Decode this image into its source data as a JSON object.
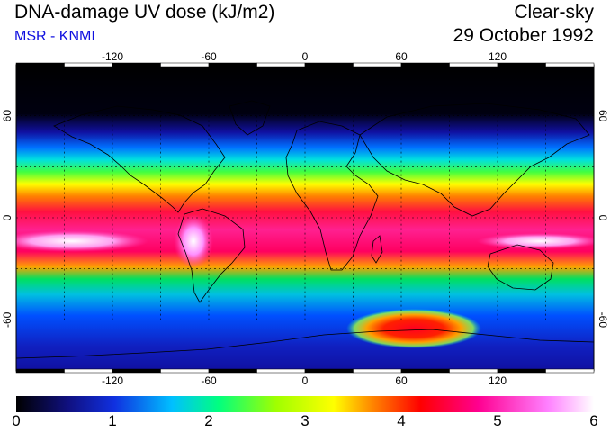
{
  "header": {
    "title": "DNA-damage UV dose (kJ/m2)",
    "subtitle": "MSR - KNMI",
    "condition": "Clear-sky",
    "date": "29 October 1992"
  },
  "map": {
    "lon_ticks": [
      "-120",
      "-60",
      "0",
      "60",
      "120"
    ],
    "lat_ticks": [
      "60",
      "0",
      "-60"
    ],
    "lat_ticks_right": [
      "60",
      "0",
      "-60"
    ]
  },
  "colorbar": {
    "labels": [
      "0",
      "1",
      "2",
      "3",
      "4",
      "5",
      "6"
    ],
    "min": 0,
    "max": 6,
    "unit": "kJ/m2",
    "colors": [
      "#000000",
      "#1010a0",
      "#0060ff",
      "#00e0e0",
      "#00e040",
      "#a0ff00",
      "#ffff00",
      "#ff8000",
      "#ff0000",
      "#ff0090",
      "#ff60ff",
      "#ffffff"
    ]
  }
}
